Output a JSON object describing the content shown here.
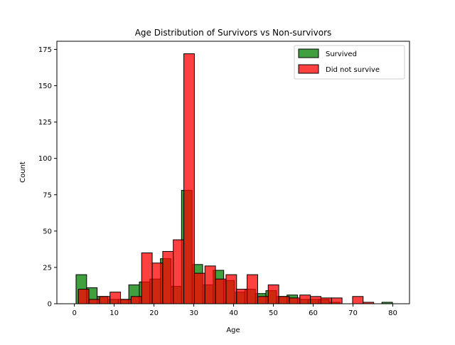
{
  "chart_data": {
    "type": "bar",
    "title": "Age Distribution of Survivors vs Non-survivors",
    "xlabel": "Age",
    "ylabel": "Count",
    "xlim": [
      -4.4,
      84.2
    ],
    "ylim": [
      0,
      180.6
    ],
    "xticks": [
      0,
      10,
      20,
      30,
      40,
      50,
      60,
      70,
      80
    ],
    "yticks": [
      0,
      25,
      50,
      75,
      100,
      125,
      150,
      175
    ],
    "grid": false,
    "legend_position": "upper right",
    "series": [
      {
        "name": "Survived",
        "color": "#008000",
        "bin_width": 2.65,
        "bins": [
          {
            "x0": 0.42,
            "count": 20
          },
          {
            "x0": 3.07,
            "count": 11
          },
          {
            "x0": 5.72,
            "count": 5
          },
          {
            "x0": 8.37,
            "count": 3
          },
          {
            "x0": 11.02,
            "count": 3
          },
          {
            "x0": 13.67,
            "count": 13
          },
          {
            "x0": 16.32,
            "count": 15
          },
          {
            "x0": 18.97,
            "count": 17
          },
          {
            "x0": 21.62,
            "count": 31
          },
          {
            "x0": 24.27,
            "count": 12
          },
          {
            "x0": 26.92,
            "count": 78
          },
          {
            "x0": 29.57,
            "count": 27
          },
          {
            "x0": 32.22,
            "count": 13
          },
          {
            "x0": 34.87,
            "count": 23
          },
          {
            "x0": 37.52,
            "count": 16
          },
          {
            "x0": 40.17,
            "count": 8
          },
          {
            "x0": 42.82,
            "count": 10
          },
          {
            "x0": 45.47,
            "count": 7
          },
          {
            "x0": 48.12,
            "count": 9
          },
          {
            "x0": 50.77,
            "count": 5
          },
          {
            "x0": 53.42,
            "count": 6
          },
          {
            "x0": 56.07,
            "count": 3
          },
          {
            "x0": 58.72,
            "count": 3
          },
          {
            "x0": 61.37,
            "count": 3
          },
          {
            "x0": 64.02,
            "count": 1
          },
          {
            "x0": 77.27,
            "count": 1
          }
        ]
      },
      {
        "name": "Did not survive",
        "color": "#ff0000",
        "bin_width": 2.65,
        "bins": [
          {
            "x0": 1.0,
            "count": 10
          },
          {
            "x0": 3.65,
            "count": 3
          },
          {
            "x0": 6.3,
            "count": 5
          },
          {
            "x0": 8.95,
            "count": 8
          },
          {
            "x0": 11.6,
            "count": 3
          },
          {
            "x0": 14.25,
            "count": 5
          },
          {
            "x0": 16.9,
            "count": 35
          },
          {
            "x0": 19.55,
            "count": 28
          },
          {
            "x0": 22.2,
            "count": 36
          },
          {
            "x0": 24.85,
            "count": 44
          },
          {
            "x0": 27.5,
            "count": 172
          },
          {
            "x0": 30.15,
            "count": 21
          },
          {
            "x0": 32.8,
            "count": 26
          },
          {
            "x0": 35.45,
            "count": 17
          },
          {
            "x0": 38.1,
            "count": 20
          },
          {
            "x0": 40.75,
            "count": 10
          },
          {
            "x0": 43.4,
            "count": 20
          },
          {
            "x0": 46.05,
            "count": 5
          },
          {
            "x0": 48.7,
            "count": 13
          },
          {
            "x0": 51.35,
            "count": 5
          },
          {
            "x0": 54.0,
            "count": 4
          },
          {
            "x0": 56.65,
            "count": 6
          },
          {
            "x0": 59.3,
            "count": 5
          },
          {
            "x0": 61.95,
            "count": 4
          },
          {
            "x0": 64.6,
            "count": 4
          },
          {
            "x0": 69.9,
            "count": 5
          },
          {
            "x0": 72.55,
            "count": 1
          }
        ]
      }
    ]
  }
}
